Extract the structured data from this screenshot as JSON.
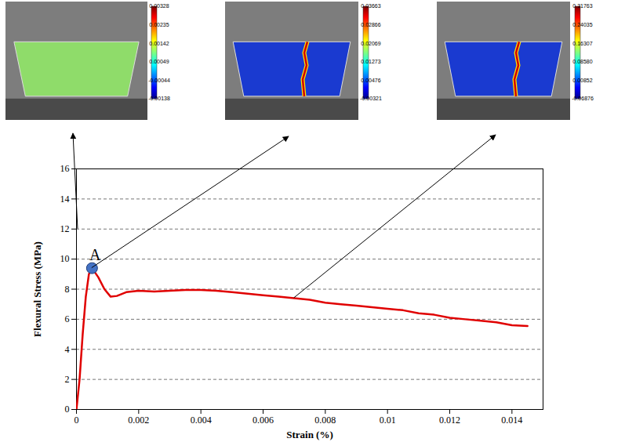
{
  "chart_data": {
    "type": "line",
    "x_label": "Strain (%)",
    "y_label": "Flexural Stress (MPa)",
    "xlim": [
      0,
      0.015
    ],
    "xticks": [
      0,
      0.002,
      0.004,
      0.006,
      0.008,
      0.01,
      0.012,
      0.014
    ],
    "ylim": [
      0,
      16
    ],
    "yticks": [
      0,
      2,
      4,
      6,
      8,
      10,
      12,
      14,
      16
    ],
    "grid": true,
    "color": "#e00000",
    "x": [
      0,
      0.0001,
      0.0002,
      0.0003,
      0.0004,
      0.0005,
      0.0007,
      0.0009,
      0.0011,
      0.0013,
      0.0016,
      0.002,
      0.0025,
      0.003,
      0.0035,
      0.004,
      0.0045,
      0.005,
      0.0055,
      0.006,
      0.0065,
      0.007,
      0.0075,
      0.008,
      0.0085,
      0.009,
      0.0095,
      0.01,
      0.0105,
      0.011,
      0.0115,
      0.012,
      0.0125,
      0.013,
      0.0135,
      0.014,
      0.0145
    ],
    "values": [
      0,
      2,
      5,
      7.5,
      9,
      9.4,
      8.8,
      8,
      7.5,
      7.55,
      7.8,
      7.9,
      7.85,
      7.9,
      7.95,
      7.95,
      7.9,
      7.8,
      7.7,
      7.6,
      7.5,
      7.4,
      7.3,
      7.1,
      7.0,
      6.9,
      6.8,
      6.7,
      6.6,
      6.4,
      6.3,
      6.1,
      6.0,
      5.9,
      5.8,
      5.6,
      5.55
    ],
    "annotations": [
      {
        "label": "A",
        "x": 0.0005,
        "y": 9.4,
        "color": "#4472c4",
        "marker": "circle"
      }
    ],
    "insets": [
      {
        "arrow_from": {
          "x": 5e-05,
          "y": 12
        },
        "colorbar": {
          "range": [
            -0.00138,
            0.00328
          ],
          "ticks": [
            {
              "value": 0.00328,
              "label": "0.00328"
            },
            {
              "value": 0.00235,
              "label": "0.00235"
            },
            {
              "value": 0.00142,
              "label": "0.00142"
            },
            {
              "value": 0.00049,
              "label": "0.00049"
            },
            {
              "value": -0.00044,
              "label": "-0.00044"
            },
            {
              "value": -0.00138,
              "label": "-0.00138"
            }
          ]
        }
      },
      {
        "arrow_from": {
          "x": 0.0005,
          "y": 9.4
        },
        "colorbar": {
          "range": [
            -0.00321,
            0.03663
          ],
          "ticks": [
            {
              "value": 0.03663,
              "label": "0.03663"
            },
            {
              "value": 0.02866,
              "label": "0.02866"
            },
            {
              "value": 0.02069,
              "label": "0.02069"
            },
            {
              "value": 0.01273,
              "label": "0.01273"
            },
            {
              "value": 0.00476,
              "label": "0.00476"
            },
            {
              "value": -0.00321,
              "label": "-0.00321"
            }
          ]
        }
      },
      {
        "arrow_from": {
          "x": 0.007,
          "y": 7.4
        },
        "colorbar": {
          "range": [
            -0.06876,
            0.31763
          ],
          "ticks": [
            {
              "value": 0.31763,
              "label": "0.31763"
            },
            {
              "value": 0.24035,
              "label": "0.24035"
            },
            {
              "value": 0.16307,
              "label": "0.16307"
            },
            {
              "value": 0.0858,
              "label": "0.08580"
            },
            {
              "value": 0.00852,
              "label": "0.00852"
            },
            {
              "value": -0.06876,
              "label": "-0.06876"
            }
          ]
        }
      }
    ]
  }
}
